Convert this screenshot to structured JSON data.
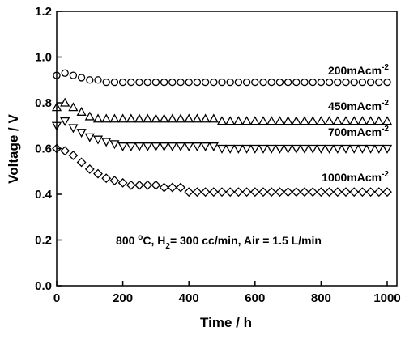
{
  "chart_data": {
    "type": "scatter",
    "x_label": "Time / h",
    "y_label": "Voltage / V",
    "xlim": [
      0,
      1000
    ],
    "xticks": [
      0,
      200,
      400,
      600,
      800,
      1000
    ],
    "ylim": [
      0,
      1.2
    ],
    "yticks": [
      {
        "value": 0,
        "label": "0.0"
      },
      0.2,
      0.4,
      0.6,
      0.8,
      {
        "value": 1,
        "label": "1.0"
      },
      1.2
    ],
    "x": [
      0,
      25,
      50,
      75,
      100,
      125,
      150,
      175,
      200,
      225,
      250,
      275,
      300,
      325,
      350,
      375,
      400,
      425,
      450,
      475,
      500,
      525,
      550,
      575,
      600,
      625,
      650,
      675,
      700,
      725,
      750,
      775,
      800,
      825,
      850,
      875,
      900,
      925,
      950,
      975,
      1000
    ],
    "series": [
      {
        "name": "200mAcm",
        "name_superscript": "-2",
        "marker": "circle",
        "color": "#000000",
        "values": [
          0.92,
          0.93,
          0.92,
          0.91,
          0.9,
          0.9,
          0.89,
          0.89,
          0.89,
          0.89,
          0.89,
          0.89,
          0.89,
          0.89,
          0.89,
          0.89,
          0.89,
          0.89,
          0.89,
          0.89,
          0.89,
          0.89,
          0.89,
          0.89,
          0.89,
          0.89,
          0.89,
          0.89,
          0.89,
          0.89,
          0.89,
          0.89,
          0.89,
          0.89,
          0.89,
          0.89,
          0.89,
          0.89,
          0.89,
          0.89,
          0.89
        ]
      },
      {
        "name": "450mAcm",
        "name_superscript": "-2",
        "marker": "triangle-up",
        "color": "#000000",
        "values": [
          0.78,
          0.8,
          0.78,
          0.76,
          0.74,
          0.73,
          0.73,
          0.73,
          0.73,
          0.73,
          0.73,
          0.73,
          0.73,
          0.73,
          0.73,
          0.73,
          0.73,
          0.73,
          0.73,
          0.73,
          0.72,
          0.72,
          0.72,
          0.72,
          0.72,
          0.72,
          0.72,
          0.72,
          0.72,
          0.72,
          0.72,
          0.72,
          0.72,
          0.72,
          0.72,
          0.72,
          0.72,
          0.72,
          0.72,
          0.72,
          0.72
        ]
      },
      {
        "name": "700mAcm",
        "name_superscript": "-2",
        "marker": "triangle-down",
        "color": "#000000",
        "values": [
          0.7,
          0.72,
          0.69,
          0.67,
          0.65,
          0.64,
          0.63,
          0.62,
          0.61,
          0.61,
          0.61,
          0.61,
          0.61,
          0.61,
          0.61,
          0.61,
          0.61,
          0.61,
          0.61,
          0.61,
          0.6,
          0.6,
          0.6,
          0.6,
          0.6,
          0.6,
          0.6,
          0.6,
          0.6,
          0.6,
          0.6,
          0.6,
          0.6,
          0.6,
          0.6,
          0.6,
          0.6,
          0.6,
          0.6,
          0.6,
          0.6
        ]
      },
      {
        "name": "1000mAcm",
        "name_superscript": "-2",
        "marker": "diamond",
        "color": "#000000",
        "values": [
          0.6,
          0.59,
          0.57,
          0.54,
          0.51,
          0.49,
          0.47,
          0.46,
          0.45,
          0.44,
          0.44,
          0.44,
          0.44,
          0.43,
          0.43,
          0.43,
          0.41,
          0.41,
          0.41,
          0.41,
          0.41,
          0.41,
          0.41,
          0.41,
          0.41,
          0.41,
          0.41,
          0.41,
          0.41,
          0.41,
          0.41,
          0.41,
          0.41,
          0.41,
          0.41,
          0.41,
          0.41,
          0.41,
          0.41,
          0.41,
          0.41
        ]
      }
    ],
    "note_parts": [
      "800 ",
      "o",
      "C, H",
      "2",
      "= 300 cc/min, Air = 1.5 L/min"
    ]
  }
}
